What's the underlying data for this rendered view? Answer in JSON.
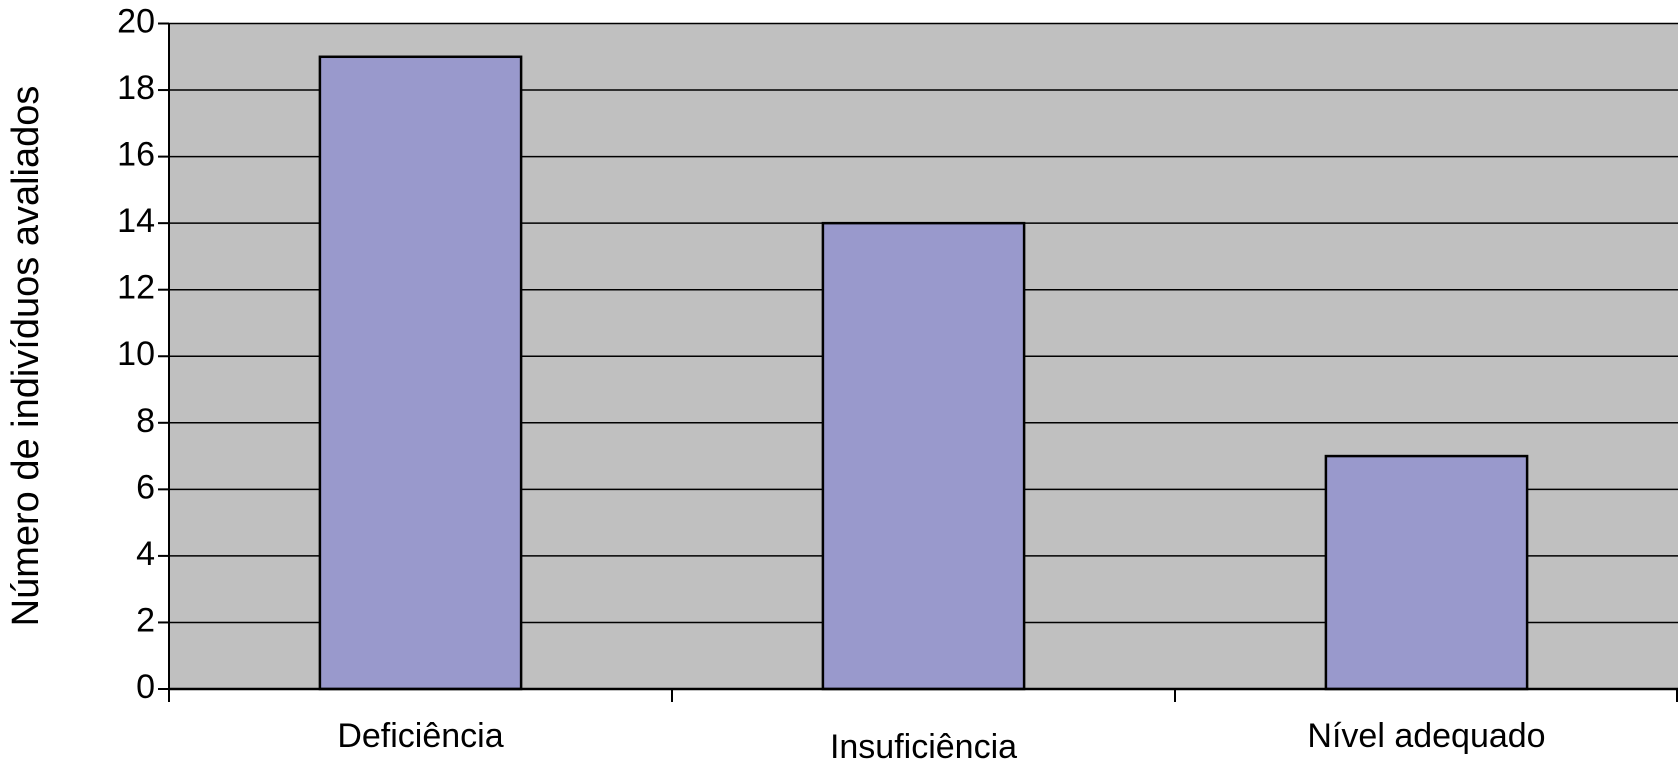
{
  "chart_data": {
    "type": "bar",
    "y_axis_label": "Número de indivíduos avaliados",
    "categories": [
      "Deficiência",
      "Insuficiência",
      "Nível adequado"
    ],
    "values": [
      19,
      14,
      7
    ],
    "color": "#9999cc",
    "ylim": [
      0,
      20
    ],
    "yticks": [
      0,
      2,
      4,
      6,
      8,
      10,
      12,
      14,
      16,
      18,
      20
    ],
    "grid": true
  }
}
